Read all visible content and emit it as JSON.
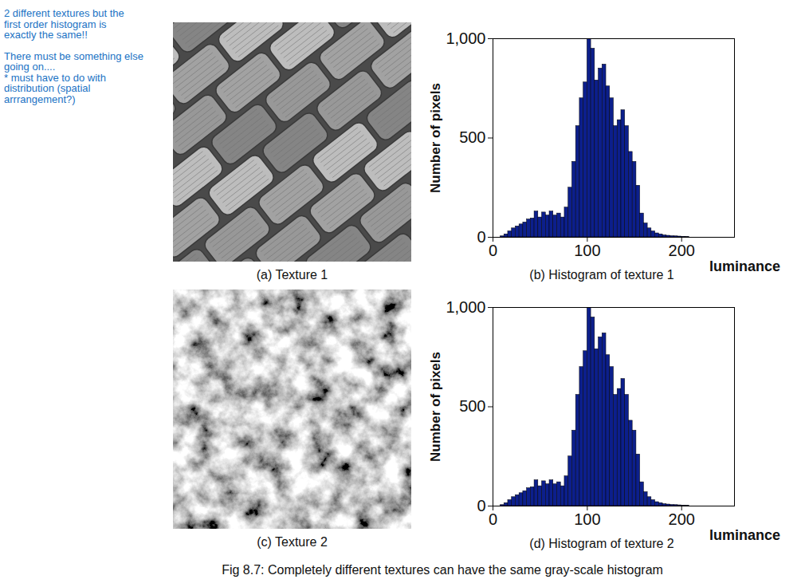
{
  "annotation": [
    [
      "2 different textures but the",
      "first order histogram is",
      "exactly the same!!"
    ],
    [
      "There must be something else",
      "going on....",
      "* must have to do with",
      "distribution (spatial",
      "arrrangement?)"
    ]
  ],
  "textures": [
    {
      "caption": "(a) Texture 1"
    },
    {
      "caption": "(c) Texture 2"
    }
  ],
  "caption": "Fig 8.7: Completely different textures can have the same gray-scale histogram",
  "chart_data": [
    {
      "type": "histogram",
      "title": "(b) Histogram of texture 1",
      "x_label": "luminance",
      "y_label": "Number of pixels",
      "bins": [
        0,
        4,
        8,
        12,
        16,
        20,
        24,
        28,
        32,
        36,
        40,
        44,
        48,
        52,
        56,
        60,
        64,
        68,
        72,
        76,
        80,
        84,
        88,
        92,
        96,
        100,
        104,
        108,
        112,
        116,
        120,
        124,
        128,
        132,
        136,
        140,
        144,
        148,
        152,
        156,
        160,
        164,
        168,
        172,
        176,
        180,
        184,
        188,
        192,
        196,
        200,
        204,
        208,
        212,
        216,
        220,
        224,
        228,
        232,
        236,
        240,
        244,
        248,
        252,
        256
      ],
      "counts": [
        0,
        0,
        5,
        15,
        30,
        45,
        55,
        65,
        75,
        90,
        95,
        130,
        100,
        125,
        110,
        130,
        110,
        120,
        100,
        150,
        250,
        380,
        560,
        700,
        780,
        1000,
        950,
        790,
        850,
        870,
        760,
        700,
        560,
        590,
        640,
        560,
        430,
        380,
        260,
        120,
        70,
        45,
        30,
        20,
        15,
        10,
        8,
        6,
        5,
        4,
        3,
        2,
        0,
        0,
        0,
        0,
        0,
        0,
        0,
        0,
        0,
        0,
        0,
        0
      ],
      "color": "#0c1f8c",
      "xlim": [
        0,
        256
      ],
      "xticks": [
        0,
        100,
        200
      ],
      "ylim": [
        0,
        1000
      ],
      "yticks": [
        0,
        500,
        1000
      ]
    },
    {
      "type": "histogram",
      "title": "(d) Histogram of texture 2",
      "x_label": "luminance",
      "y_label": "Number of pixels",
      "bins": [
        0,
        4,
        8,
        12,
        16,
        20,
        24,
        28,
        32,
        36,
        40,
        44,
        48,
        52,
        56,
        60,
        64,
        68,
        72,
        76,
        80,
        84,
        88,
        92,
        96,
        100,
        104,
        108,
        112,
        116,
        120,
        124,
        128,
        132,
        136,
        140,
        144,
        148,
        152,
        156,
        160,
        164,
        168,
        172,
        176,
        180,
        184,
        188,
        192,
        196,
        200,
        204,
        208,
        212,
        216,
        220,
        224,
        228,
        232,
        236,
        240,
        244,
        248,
        252,
        256
      ],
      "counts": [
        0,
        0,
        5,
        15,
        30,
        45,
        55,
        65,
        75,
        90,
        95,
        130,
        100,
        125,
        110,
        130,
        110,
        120,
        100,
        150,
        250,
        380,
        560,
        700,
        780,
        1000,
        950,
        790,
        850,
        870,
        760,
        700,
        560,
        590,
        640,
        560,
        430,
        380,
        260,
        120,
        70,
        45,
        30,
        20,
        15,
        10,
        8,
        6,
        5,
        4,
        3,
        2,
        0,
        0,
        0,
        0,
        0,
        0,
        0,
        0,
        0,
        0,
        0,
        0
      ],
      "color": "#0c1f8c",
      "xlim": [
        0,
        256
      ],
      "xticks": [
        0,
        100,
        200
      ],
      "ylim": [
        0,
        1000
      ],
      "yticks": [
        0,
        500,
        1000
      ]
    }
  ]
}
